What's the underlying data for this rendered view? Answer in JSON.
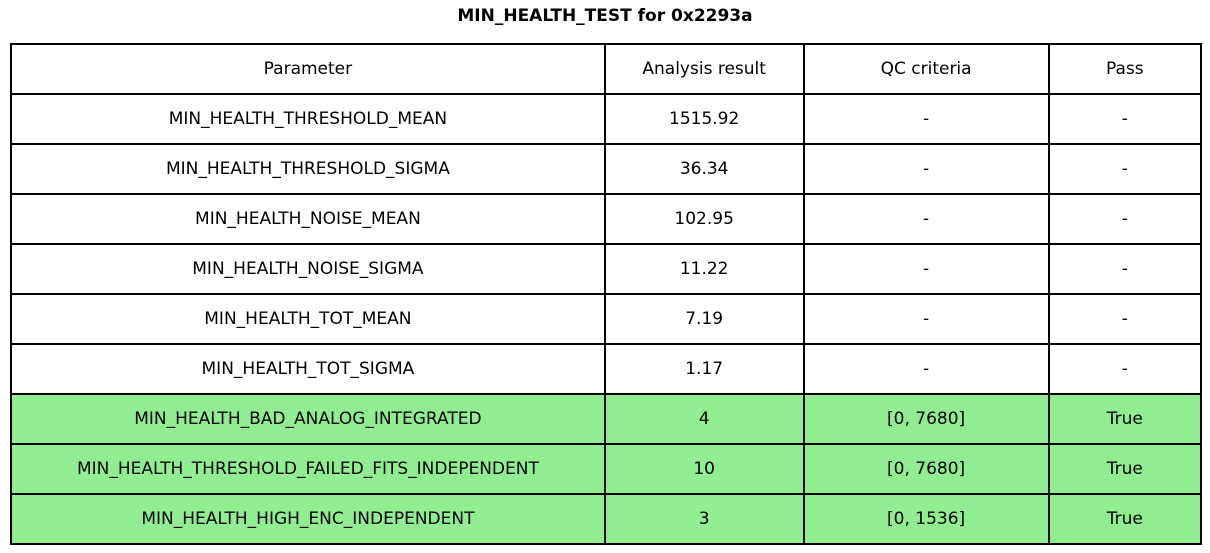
{
  "chart_data": {
    "type": "table",
    "title": "MIN_HEALTH_TEST for 0x2293a",
    "columns": [
      "Parameter",
      "Analysis result",
      "QC criteria",
      "Pass"
    ],
    "rows": [
      [
        "MIN_HEALTH_THRESHOLD_MEAN",
        "1515.92",
        "-",
        "-"
      ],
      [
        "MIN_HEALTH_THRESHOLD_SIGMA",
        "36.34",
        "-",
        "-"
      ],
      [
        "MIN_HEALTH_NOISE_MEAN",
        "102.95",
        "-",
        "-"
      ],
      [
        "MIN_HEALTH_NOISE_SIGMA",
        "11.22",
        "-",
        "-"
      ],
      [
        "MIN_HEALTH_TOT_MEAN",
        "7.19",
        "-",
        "-"
      ],
      [
        "MIN_HEALTH_TOT_SIGMA",
        "1.17",
        "-",
        "-"
      ],
      [
        "MIN_HEALTH_BAD_ANALOG_INTEGRATED",
        "4",
        "[0, 7680]",
        "True"
      ],
      [
        "MIN_HEALTH_THRESHOLD_FAILED_FITS_INDEPENDENT",
        "10",
        "[0, 7680]",
        "True"
      ],
      [
        "MIN_HEALTH_HIGH_ENC_INDEPENDENT",
        "3",
        "[0, 1536]",
        "True"
      ]
    ],
    "highlighted_rows": [
      6,
      7,
      8
    ],
    "highlight_color": "#90EE90",
    "border_color": "#000000",
    "text_color": "#000000",
    "background_color": "#ffffff",
    "layout": "header row on top, all cells center-aligned, black grid borders"
  }
}
